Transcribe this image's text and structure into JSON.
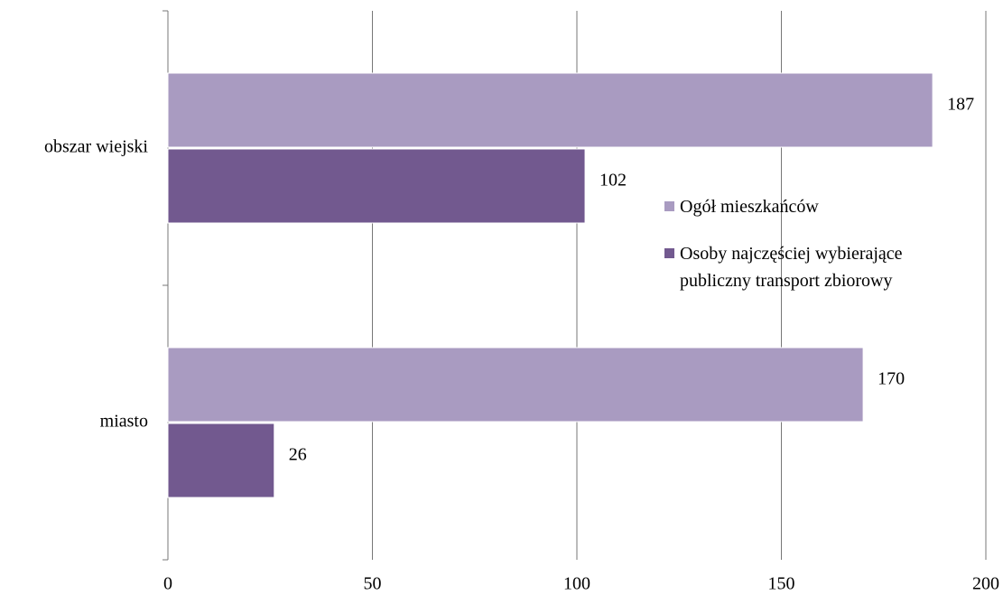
{
  "chart_data": {
    "type": "hbar",
    "categories": [
      "obszar wiejski",
      "miasto"
    ],
    "series": [
      {
        "name": "Ogół mieszkańców",
        "color": "#a99bc1",
        "values": [
          187,
          170
        ]
      },
      {
        "name": "Osoby najczęściej wybierające publiczny transport zbiorowy",
        "color": "#72598f",
        "values": [
          102,
          26
        ]
      }
    ],
    "xlim": [
      0,
      200
    ],
    "xticks": [
      0,
      50,
      100,
      150,
      200
    ],
    "grid": true,
    "legend": "right"
  }
}
